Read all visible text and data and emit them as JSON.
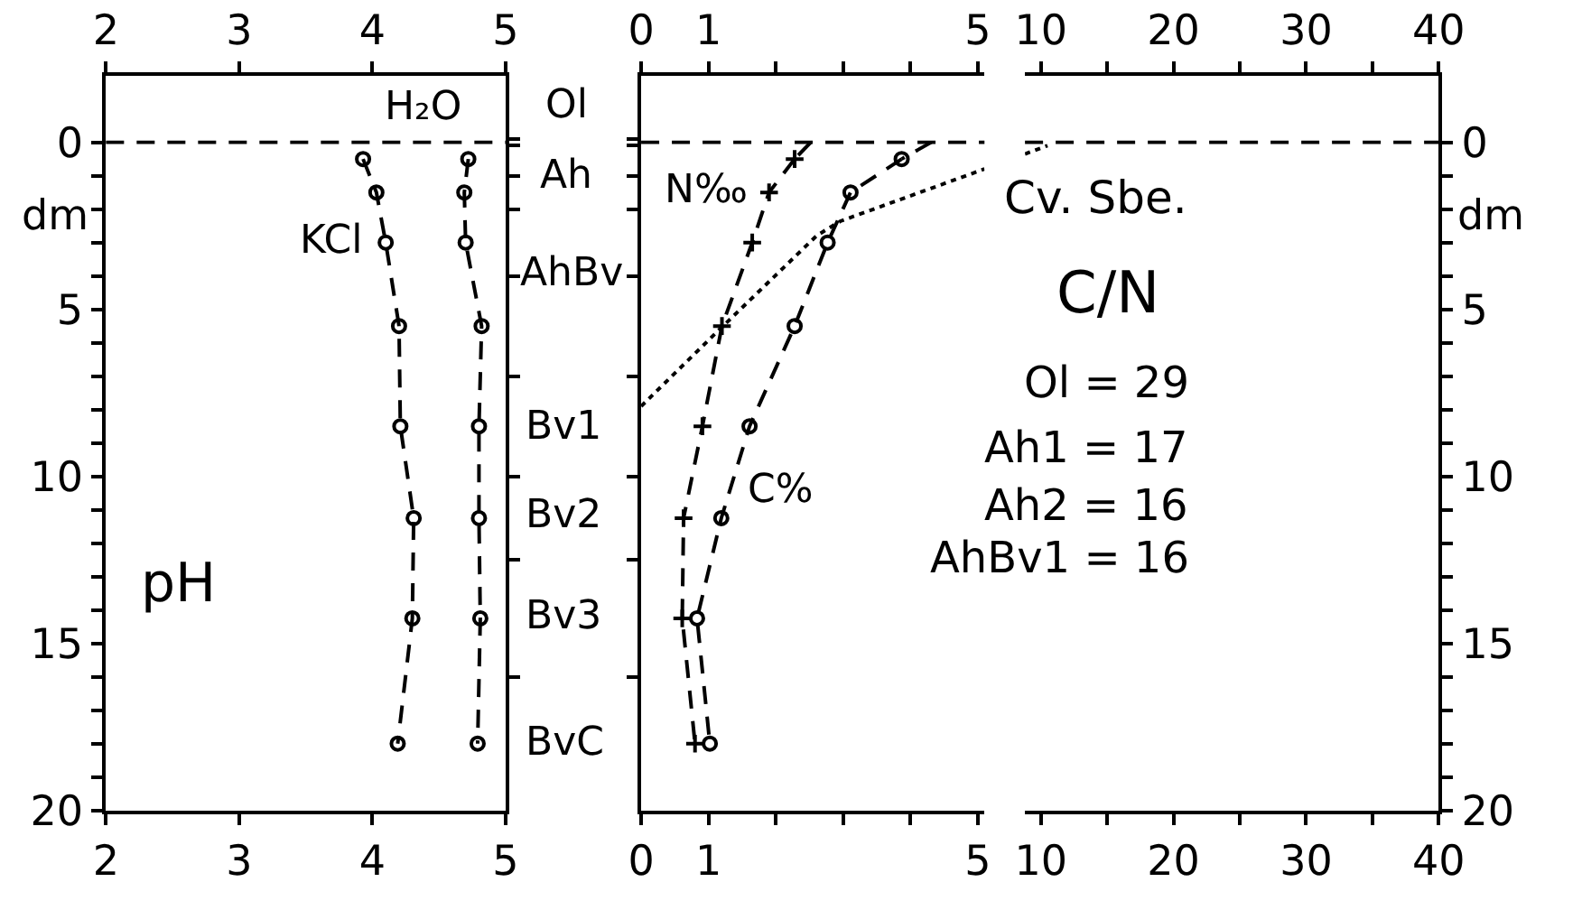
{
  "chart_data": [
    {
      "type": "line",
      "title": "pH",
      "ylabel": "dm",
      "xlim": [
        2,
        5
      ],
      "xticks": [
        2,
        3,
        4,
        5
      ],
      "x2lim": [
        2,
        5
      ],
      "x2ticks": [
        2,
        3,
        4,
        5
      ],
      "ylim": [
        20,
        -2
      ],
      "yticks": [
        0,
        {
          "value": 1,
          "label": null
        },
        {
          "value": 2,
          "label": null
        },
        {
          "value": 3,
          "label": null
        },
        {
          "value": 4,
          "label": null
        },
        5,
        {
          "value": 6,
          "label": null
        },
        {
          "value": 7,
          "label": null
        },
        {
          "value": 8,
          "label": null
        },
        {
          "value": 9,
          "label": null
        },
        10,
        {
          "value": 11,
          "label": null
        },
        {
          "value": 12,
          "label": null
        },
        {
          "value": 13,
          "label": null
        },
        {
          "value": 14,
          "label": null
        },
        15,
        {
          "value": 16,
          "label": null
        },
        {
          "value": 17,
          "label": null
        },
        {
          "value": 18,
          "label": null
        },
        {
          "value": 19,
          "label": null
        },
        20
      ],
      "series": [
        {
          "color": "#000000",
          "marker": "circle",
          "line_style": "dashed",
          "x": [
            3.93,
            4.03,
            4.1,
            4.2,
            4.21,
            4.31,
            4.3,
            4.19
          ],
          "values": [
            0.5,
            1.5,
            3,
            5.5,
            8.5,
            11.25,
            14.25,
            18
          ]
        },
        {
          "color": "#000000",
          "marker": "circle",
          "line_style": "dashed",
          "x": [
            4.72,
            4.69,
            4.7,
            4.82,
            4.8,
            4.8,
            4.81,
            4.79
          ],
          "values": [
            0.5,
            1.5,
            3,
            5.5,
            8.5,
            11.25,
            14.25,
            18
          ]
        }
      ],
      "ref_lines": [
        {
          "axis": "y",
          "value": 0,
          "line_style": "dashed",
          "color": "#000000"
        }
      ],
      "annotations": [
        "KCl",
        "H₂O",
        "Ol",
        "Ah",
        "AhBv",
        "Bv1",
        "Bv2",
        "Bv3",
        "BvC"
      ]
    },
    {
      "type": "line",
      "tick_labels": "x",
      "xlim": [
        0,
        5.1
      ],
      "xticks": [
        0,
        1,
        {
          "value": 2,
          "label": null
        },
        {
          "value": 3,
          "label": null
        },
        {
          "value": 4,
          "label": null
        },
        5
      ],
      "x2lim": [
        0,
        5.1
      ],
      "x2ticks": [
        0,
        1,
        {
          "value": 2,
          "label": null
        },
        {
          "value": 3,
          "label": null
        },
        {
          "value": 4,
          "label": null
        },
        5
      ],
      "ylim": [
        20,
        -2
      ],
      "yticks": [
        {
          "value": -0.1,
          "label": null
        },
        {
          "value": 0.1,
          "label": null
        },
        {
          "value": 1,
          "label": null
        },
        {
          "value": 2,
          "label": null
        },
        {
          "value": 4,
          "label": null
        },
        {
          "value": 7,
          "label": null
        },
        {
          "value": 10,
          "label": null
        },
        {
          "value": 12.5,
          "label": null
        },
        {
          "value": 16,
          "label": null
        }
      ],
      "series": [
        {
          "color": "#000000",
          "marker": "cross",
          "line_style": "dashed",
          "x": [
            2.28,
            1.9,
            1.65,
            1.2,
            0.91,
            0.63,
            0.61,
            0.8
          ],
          "values": [
            0.5,
            1.5,
            3,
            5.5,
            8.5,
            11.25,
            14.25,
            18
          ]
        },
        {
          "color": "#000000",
          "marker": "none",
          "line_style": "dashed",
          "x": [
            2.52,
            2.28
          ],
          "values": [
            0,
            0.5
          ]
        },
        {
          "color": "#000000",
          "marker": "circle",
          "line_style": "dashed",
          "x": [
            3.87,
            3.11,
            2.77,
            2.28,
            1.61,
            1.19,
            0.83,
            1.02
          ],
          "values": [
            0.5,
            1.5,
            3,
            5.5,
            8.5,
            11.25,
            14.25,
            18
          ]
        },
        {
          "color": "#000000",
          "marker": "none",
          "line_style": "dashed",
          "x": [
            4.31,
            3.87
          ],
          "values": [
            0,
            0.5
          ]
        },
        {
          "color": "#000000",
          "marker": "none",
          "line_style": "dotted",
          "x": [
            0,
            1.17,
            2.61,
            2.96,
            5.1
          ],
          "values": [
            7.9,
            5.59,
            2.79,
            2.36,
            0.8
          ]
        }
      ],
      "ref_lines": [
        {
          "axis": "y",
          "value": 0,
          "line_style": "dashed",
          "color": "#000000"
        }
      ],
      "annotations": [
        "N‰",
        "C%"
      ]
    },
    {
      "type": "line",
      "title": "C/N",
      "ylabel": "dm",
      "xlim": [
        8.8,
        40
      ],
      "xticks": [
        10,
        {
          "value": 15,
          "label": null
        },
        20,
        {
          "value": 25,
          "label": null
        },
        30,
        {
          "value": 35,
          "label": null
        },
        40
      ],
      "x2lim": [
        8.8,
        40
      ],
      "x2ticks": [
        10,
        {
          "value": 15,
          "label": null
        },
        20,
        {
          "value": 25,
          "label": null
        },
        30,
        {
          "value": 35,
          "label": null
        },
        40
      ],
      "ylim": [
        20,
        -2
      ],
      "yticks": [
        0,
        {
          "value": 1,
          "label": null
        },
        {
          "value": 2,
          "label": null
        },
        {
          "value": 3,
          "label": null
        },
        {
          "value": 4,
          "label": null
        },
        5,
        {
          "value": 6,
          "label": null
        },
        {
          "value": 7,
          "label": null
        },
        {
          "value": 8,
          "label": null
        },
        {
          "value": 9,
          "label": null
        },
        10,
        {
          "value": 11,
          "label": null
        },
        {
          "value": 12,
          "label": null
        },
        {
          "value": 13,
          "label": null
        },
        {
          "value": 14,
          "label": null
        },
        15,
        {
          "value": 16,
          "label": null
        },
        {
          "value": 17,
          "label": null
        },
        {
          "value": 18,
          "label": null
        },
        {
          "value": 19,
          "label": null
        },
        20
      ],
      "series": [
        {
          "color": "#000000",
          "marker": "none",
          "line_style": "dotted",
          "x": [
            8.8,
            10.5
          ],
          "values": [
            0.35,
            0.1
          ]
        }
      ],
      "ref_lines": [
        {
          "axis": "y",
          "value": 0,
          "line_style": "dashed",
          "color": "#000000"
        }
      ],
      "annotations": [
        "Cv. Sbe.",
        "Ol = 29",
        "Ah1 = 17",
        "Ah2 = 16",
        "AhBv1 = 16"
      ]
    }
  ]
}
